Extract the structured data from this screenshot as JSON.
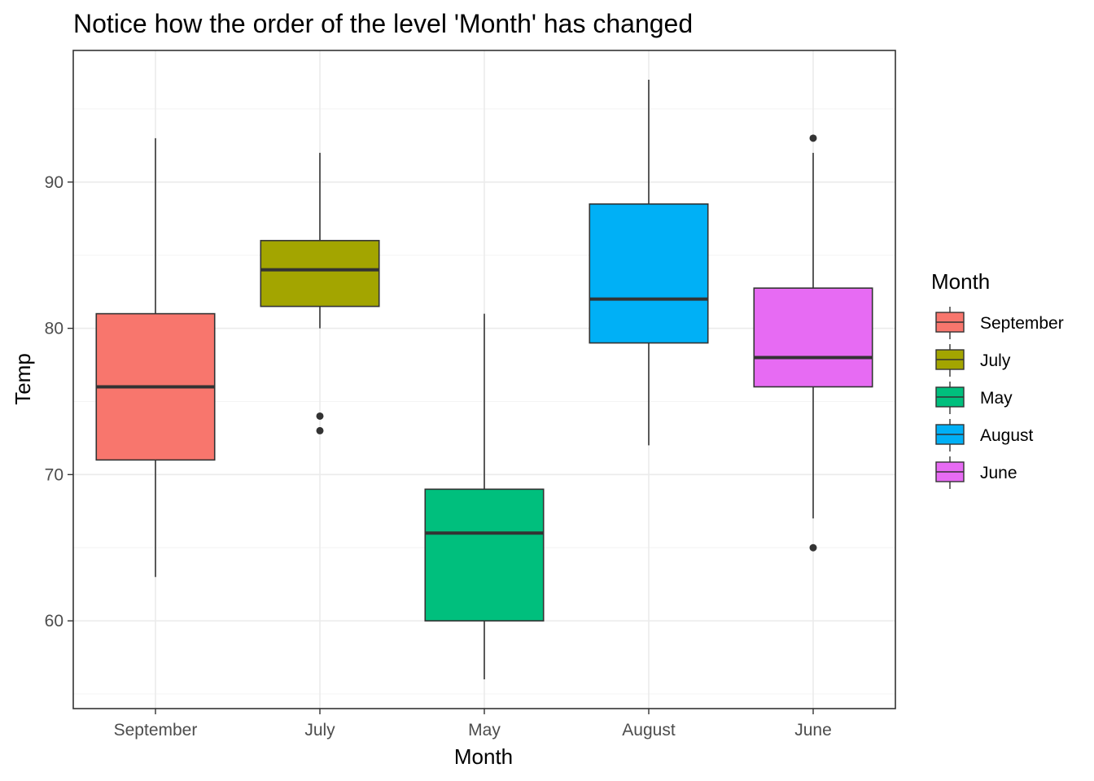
{
  "chart_data": {
    "type": "boxplot",
    "title": "Notice how the order of the level 'Month' has changed",
    "xlabel": "Month",
    "ylabel": "Temp",
    "categories": [
      "September",
      "July",
      "May",
      "August",
      "June"
    ],
    "ylim": [
      54,
      99
    ],
    "yticks": [
      60,
      70,
      80,
      90
    ],
    "grid": true,
    "legend": {
      "title": "Month",
      "position": "right",
      "entries": [
        "September",
        "July",
        "May",
        "August",
        "June"
      ]
    },
    "series": [
      {
        "name": "September",
        "color": "#F8766D",
        "whisker_low": 63,
        "q1": 71,
        "median": 76,
        "q3": 81,
        "whisker_high": 93,
        "outliers": []
      },
      {
        "name": "July",
        "color": "#A3A500",
        "whisker_low": 80,
        "q1": 81.5,
        "median": 84,
        "q3": 86,
        "whisker_high": 92,
        "outliers": [
          73,
          74
        ]
      },
      {
        "name": "May",
        "color": "#00BF7D",
        "whisker_low": 56,
        "q1": 60,
        "median": 66,
        "q3": 69,
        "whisker_high": 81,
        "outliers": []
      },
      {
        "name": "August",
        "color": "#00B0F6",
        "whisker_low": 72,
        "q1": 79,
        "median": 82,
        "q3": 88.5,
        "whisker_high": 97,
        "outliers": []
      },
      {
        "name": "June",
        "color": "#E76BF3",
        "whisker_low": 67,
        "q1": 76,
        "median": 78,
        "q3": 82.75,
        "whisker_high": 92,
        "outliers": [
          65,
          93
        ]
      }
    ]
  }
}
